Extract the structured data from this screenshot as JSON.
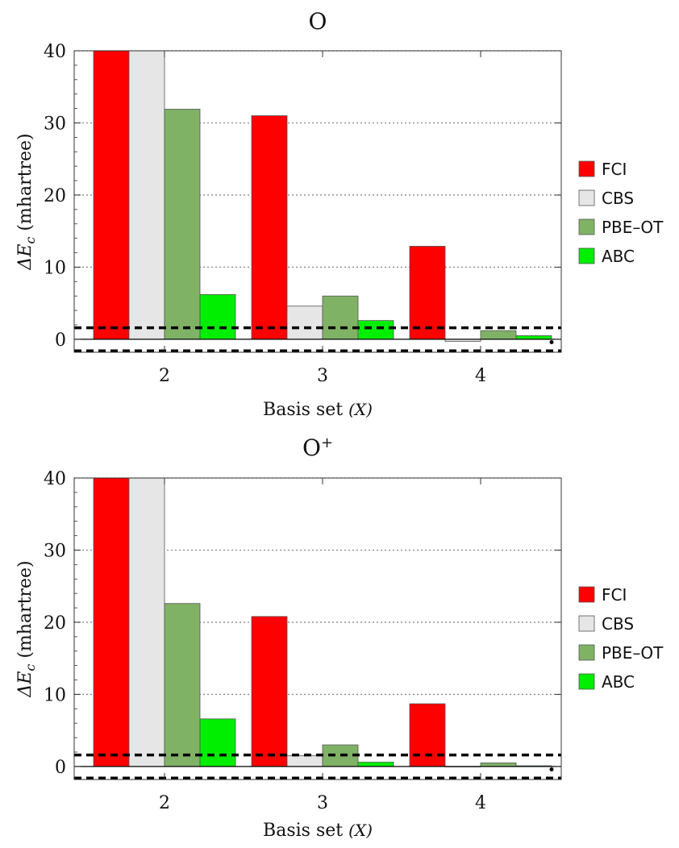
{
  "chart_data": [
    {
      "type": "bar",
      "title": "O",
      "title_sup": "",
      "xlabel": "Basis set",
      "xlabel_var": "(X)",
      "ylabel_prefix": "ΔE",
      "ylabel_sub": "c",
      "ylabel_unit": "(mhartree)",
      "categories": [
        "2",
        "3",
        "4"
      ],
      "ylim": [
        -1.8,
        40
      ],
      "yticks": [
        0,
        10,
        20,
        30,
        40
      ],
      "grid": "horizontal-dotted",
      "legend_position": "right",
      "chemical_accuracy_band": [
        -1.6,
        1.6
      ],
      "series": [
        {
          "name": "FCI",
          "color": "#ff0000",
          "values": [
            40,
            31,
            12.9
          ]
        },
        {
          "name": "CBS",
          "color": "#e6e6e6",
          "values": [
            40,
            4.6,
            -0.3
          ]
        },
        {
          "name": "PBE–OT",
          "color": "#80b266",
          "values": [
            31.9,
            6.0,
            1.2
          ]
        },
        {
          "name": "ABC",
          "color": "#00ee00",
          "values": [
            6.2,
            2.6,
            0.5
          ]
        }
      ]
    },
    {
      "type": "bar",
      "title": "O",
      "title_sup": "+",
      "xlabel": "Basis set",
      "xlabel_var": "(X)",
      "ylabel_prefix": "ΔE",
      "ylabel_sub": "c",
      "ylabel_unit": "(mhartree)",
      "categories": [
        "2",
        "3",
        "4"
      ],
      "ylim": [
        -1.8,
        40
      ],
      "yticks": [
        0,
        10,
        20,
        30,
        40
      ],
      "grid": "horizontal-dotted",
      "legend_position": "right",
      "chemical_accuracy_band": [
        -1.6,
        1.6
      ],
      "series": [
        {
          "name": "FCI",
          "color": "#ff0000",
          "values": [
            40,
            20.8,
            8.7
          ]
        },
        {
          "name": "CBS",
          "color": "#e6e6e6",
          "values": [
            40,
            1.5,
            0.0
          ]
        },
        {
          "name": "PBE–OT",
          "color": "#80b266",
          "values": [
            22.6,
            3.0,
            0.5
          ]
        },
        {
          "name": "ABC",
          "color": "#00ee00",
          "values": [
            6.6,
            0.6,
            0.1
          ]
        }
      ]
    }
  ]
}
